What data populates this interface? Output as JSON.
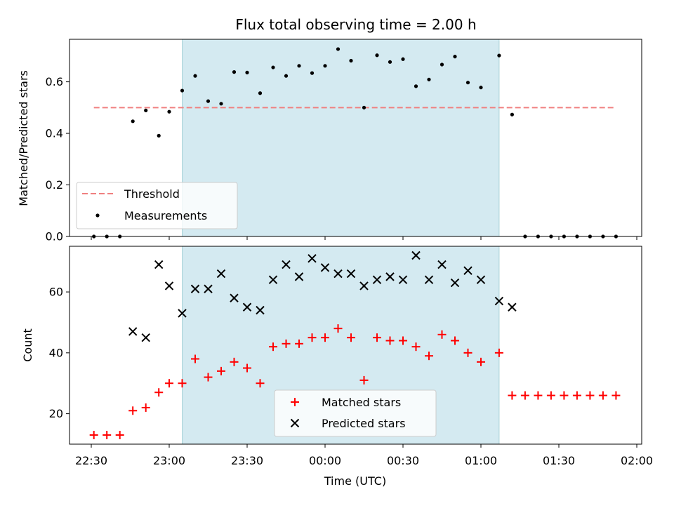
{
  "chart_data": [
    {
      "type": "scatter",
      "title": "Flux total observing time = 2.00 h",
      "ylabel": "Matched/Predicted stars",
      "ylim": [
        0.0,
        0.765
      ],
      "yticks": [
        "0.0",
        "0.2",
        "0.4",
        "0.6"
      ],
      "threshold": {
        "name": "Threshold",
        "value": 0.5,
        "color": "#f08080",
        "from": "22:31",
        "to": "01:52"
      },
      "shaded_region": {
        "from": "23:05",
        "to": "01:07",
        "color": "#d4eaf1"
      },
      "legend_placement": "lower-left",
      "series": [
        {
          "name": "Measurements",
          "color": "#000000",
          "points": [
            [
              "22:31",
              0.0
            ],
            [
              "22:36",
              0.0
            ],
            [
              "22:41",
              0.0
            ],
            [
              "22:46",
              0.447
            ],
            [
              "22:51",
              0.489
            ],
            [
              "22:56",
              0.391
            ],
            [
              "23:00",
              0.484
            ],
            [
              "23:05",
              0.566
            ],
            [
              "23:10",
              0.623
            ],
            [
              "23:15",
              0.525
            ],
            [
              "23:20",
              0.515
            ],
            [
              "23:25",
              0.638
            ],
            [
              "23:30",
              0.636
            ],
            [
              "23:35",
              0.556
            ],
            [
              "23:40",
              0.656
            ],
            [
              "23:45",
              0.623
            ],
            [
              "23:50",
              0.662
            ],
            [
              "23:55",
              0.634
            ],
            [
              "00:00",
              0.662
            ],
            [
              "00:05",
              0.727
            ],
            [
              "00:10",
              0.682
            ],
            [
              "00:15",
              0.5
            ],
            [
              "00:20",
              0.703
            ],
            [
              "00:25",
              0.677
            ],
            [
              "00:30",
              0.688
            ],
            [
              "00:35",
              0.583
            ],
            [
              "00:40",
              0.609
            ],
            [
              "00:45",
              0.667
            ],
            [
              "00:50",
              0.698
            ],
            [
              "00:55",
              0.597
            ],
            [
              "01:00",
              0.578
            ],
            [
              "01:07",
              0.702
            ],
            [
              "01:12",
              0.473
            ],
            [
              "01:17",
              0.0
            ],
            [
              "01:22",
              0.0
            ],
            [
              "01:27",
              0.0
            ],
            [
              "01:32",
              0.0
            ],
            [
              "01:37",
              0.0
            ],
            [
              "01:42",
              0.0
            ],
            [
              "01:47",
              0.0
            ],
            [
              "01:52",
              0.0
            ]
          ]
        }
      ]
    },
    {
      "type": "scatter",
      "xlabel": "Time (UTC)",
      "ylabel": "Count",
      "ylim": [
        10,
        75
      ],
      "yticks": [
        "20",
        "40",
        "60"
      ],
      "xticks": [
        "22:30",
        "23:00",
        "23:30",
        "00:00",
        "00:30",
        "01:00",
        "01:30",
        "02:00"
      ],
      "shaded_region": {
        "from": "23:05",
        "to": "01:07",
        "color": "#d4eaf1"
      },
      "legend_placement": "lower-center",
      "series": [
        {
          "name": "Matched stars",
          "marker": "plus",
          "color": "#ff0000",
          "points": [
            [
              "22:31",
              13
            ],
            [
              "22:36",
              13
            ],
            [
              "22:41",
              13
            ],
            [
              "22:46",
              21
            ],
            [
              "22:51",
              22
            ],
            [
              "22:56",
              27
            ],
            [
              "23:00",
              30
            ],
            [
              "23:05",
              30
            ],
            [
              "23:10",
              38
            ],
            [
              "23:15",
              32
            ],
            [
              "23:20",
              34
            ],
            [
              "23:25",
              37
            ],
            [
              "23:30",
              35
            ],
            [
              "23:35",
              30
            ],
            [
              "23:40",
              42
            ],
            [
              "23:45",
              43
            ],
            [
              "23:50",
              43
            ],
            [
              "23:55",
              45
            ],
            [
              "00:00",
              45
            ],
            [
              "00:05",
              48
            ],
            [
              "00:10",
              45
            ],
            [
              "00:15",
              31
            ],
            [
              "00:20",
              45
            ],
            [
              "00:25",
              44
            ],
            [
              "00:30",
              44
            ],
            [
              "00:35",
              42
            ],
            [
              "00:40",
              39
            ],
            [
              "00:45",
              46
            ],
            [
              "00:50",
              44
            ],
            [
              "00:55",
              40
            ],
            [
              "01:00",
              37
            ],
            [
              "01:07",
              40
            ],
            [
              "01:12",
              26
            ],
            [
              "01:17",
              26
            ],
            [
              "01:22",
              26
            ],
            [
              "01:27",
              26
            ],
            [
              "01:32",
              26
            ],
            [
              "01:37",
              26
            ],
            [
              "01:42",
              26
            ],
            [
              "01:47",
              26
            ],
            [
              "01:52",
              26
            ]
          ]
        },
        {
          "name": "Predicted stars",
          "marker": "x",
          "color": "#000000",
          "points": [
            [
              "22:46",
              47
            ],
            [
              "22:51",
              45
            ],
            [
              "22:56",
              69
            ],
            [
              "23:00",
              62
            ],
            [
              "23:05",
              53
            ],
            [
              "23:10",
              61
            ],
            [
              "23:15",
              61
            ],
            [
              "23:20",
              66
            ],
            [
              "23:25",
              58
            ],
            [
              "23:30",
              55
            ],
            [
              "23:35",
              54
            ],
            [
              "23:40",
              64
            ],
            [
              "23:45",
              69
            ],
            [
              "23:50",
              65
            ],
            [
              "23:55",
              71
            ],
            [
              "00:00",
              68
            ],
            [
              "00:05",
              66
            ],
            [
              "00:10",
              66
            ],
            [
              "00:15",
              62
            ],
            [
              "00:20",
              64
            ],
            [
              "00:25",
              65
            ],
            [
              "00:30",
              64
            ],
            [
              "00:35",
              72
            ],
            [
              "00:40",
              64
            ],
            [
              "00:45",
              69
            ],
            [
              "00:50",
              63
            ],
            [
              "00:55",
              67
            ],
            [
              "01:00",
              64
            ],
            [
              "01:07",
              57
            ],
            [
              "01:12",
              55
            ]
          ]
        }
      ]
    }
  ]
}
